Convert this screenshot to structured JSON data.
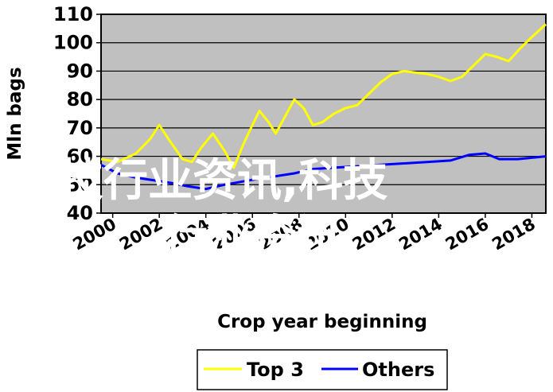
{
  "chart_data": {
    "type": "line",
    "xlabel": "Crop year beginning",
    "ylabel": "Mln bags",
    "ylim": [
      40,
      110
    ],
    "y_ticks": [
      40,
      50,
      60,
      70,
      80,
      90,
      100,
      110
    ],
    "xlim": [
      1999.5,
      2018.6
    ],
    "x_ticks": [
      2000,
      2002,
      2004,
      2006,
      2008,
      2010,
      2012,
      2014,
      2016,
      2018
    ],
    "x_tick_labels": [
      "2000",
      "2002",
      "2004",
      "2006",
      "2008",
      "2010",
      "2012",
      "2014",
      "2016",
      "2018"
    ],
    "grid": "horizontal",
    "legend_position": "bottom",
    "series": [
      {
        "name": "Top 3",
        "color": "#ffff00",
        "points": [
          [
            1999.5,
            59
          ],
          [
            2000.2,
            58
          ],
          [
            2001.0,
            61
          ],
          [
            2001.6,
            66
          ],
          [
            2002.0,
            71
          ],
          [
            2002.4,
            66
          ],
          [
            2003.0,
            59
          ],
          [
            2003.4,
            58
          ],
          [
            2003.8,
            63
          ],
          [
            2004.3,
            68
          ],
          [
            2004.8,
            62
          ],
          [
            2005.2,
            56
          ],
          [
            2005.6,
            64
          ],
          [
            2006.0,
            71
          ],
          [
            2006.3,
            76
          ],
          [
            2006.7,
            72
          ],
          [
            2007.0,
            68
          ],
          [
            2007.4,
            74
          ],
          [
            2007.8,
            80
          ],
          [
            2008.2,
            77
          ],
          [
            2008.6,
            71
          ],
          [
            2009.0,
            72
          ],
          [
            2009.5,
            75
          ],
          [
            2010.0,
            77
          ],
          [
            2010.5,
            78
          ],
          [
            2011.0,
            82
          ],
          [
            2011.5,
            86
          ],
          [
            2012.0,
            89
          ],
          [
            2012.5,
            90
          ],
          [
            2013.0,
            89.5
          ],
          [
            2013.5,
            89
          ],
          [
            2014.0,
            88
          ],
          [
            2014.5,
            86.5
          ],
          [
            2015.0,
            88
          ],
          [
            2015.5,
            92
          ],
          [
            2016.0,
            96
          ],
          [
            2016.5,
            95
          ],
          [
            2017.0,
            93.5
          ],
          [
            2017.5,
            98
          ],
          [
            2018.0,
            102
          ],
          [
            2018.6,
            106.5
          ]
        ]
      },
      {
        "name": "Others",
        "color": "#0000ff",
        "points": [
          [
            1999.5,
            57
          ],
          [
            2000.2,
            54
          ],
          [
            2001.0,
            52.5
          ],
          [
            2001.8,
            51.5
          ],
          [
            2002.6,
            50.5
          ],
          [
            2003.2,
            49.5
          ],
          [
            2004.0,
            48.5
          ],
          [
            2004.8,
            50
          ],
          [
            2005.5,
            51
          ],
          [
            2006.2,
            52
          ],
          [
            2007.0,
            53
          ],
          [
            2007.8,
            54
          ],
          [
            2008.6,
            55.5
          ],
          [
            2009.5,
            56
          ],
          [
            2010.5,
            56.5
          ],
          [
            2011.5,
            57
          ],
          [
            2012.5,
            57.5
          ],
          [
            2013.5,
            58
          ],
          [
            2014.5,
            58.5
          ],
          [
            2015.3,
            60.5
          ],
          [
            2016.0,
            61
          ],
          [
            2016.6,
            59
          ],
          [
            2017.4,
            59
          ],
          [
            2018.0,
            59.5
          ],
          [
            2018.6,
            60
          ]
        ]
      }
    ]
  },
  "overlay": {
    "line1": "科技行业资讯,科技",
    "line2": "行业资讯"
  }
}
